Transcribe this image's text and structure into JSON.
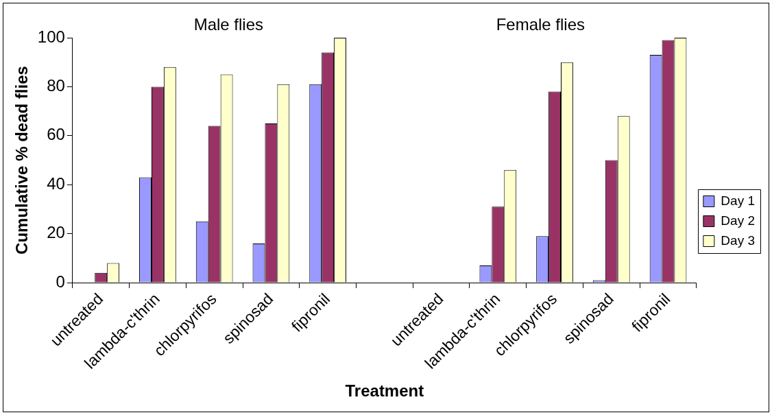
{
  "chart_data": {
    "type": "bar",
    "xlabel": "Treatment",
    "ylabel": "Cumulative % dead flies",
    "categories": [
      "untreated",
      "lambda-c'thrin",
      "chlorpyrifos",
      "spinosad",
      "fipronil",
      null,
      "untreated",
      "lambda-c'thrin",
      "chlorpyrifos",
      "spinosad",
      "fipronil"
    ],
    "series": [
      {
        "name": "Day 1",
        "color": "#9999ff",
        "values": [
          0,
          43,
          25,
          16,
          81,
          null,
          0,
          7,
          19,
          1,
          93
        ]
      },
      {
        "name": "Day 2",
        "color": "#993366",
        "values": [
          4,
          80,
          64,
          65,
          94,
          null,
          0,
          31,
          78,
          50,
          99
        ]
      },
      {
        "name": "Day 3",
        "color": "#ffffcc",
        "values": [
          8,
          88,
          85,
          81,
          100,
          null,
          0,
          46,
          90,
          68,
          100
        ]
      }
    ],
    "ylim": [
      0,
      100
    ],
    "yticks": [
      0,
      20,
      40,
      60,
      80,
      100
    ],
    "annotations": [
      "Male flies",
      "Female flies"
    ],
    "grid": false,
    "legend": "right"
  }
}
